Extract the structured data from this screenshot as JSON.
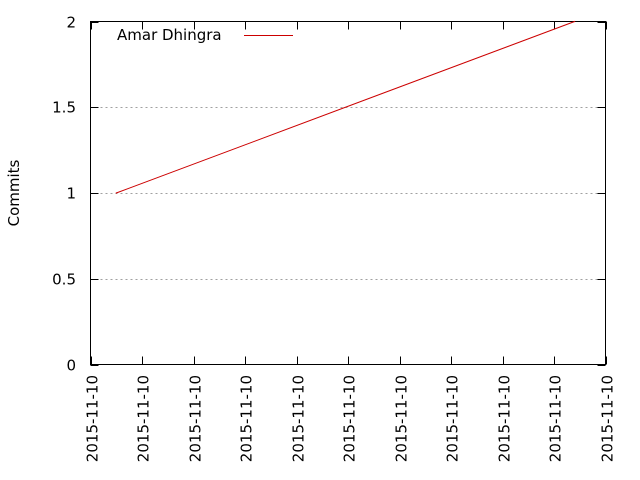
{
  "colors": {
    "series": "#cc0000",
    "grid": "#a0a0a0",
    "axis": "#000000"
  },
  "chart_data": {
    "type": "line",
    "title": "",
    "xlabel": "",
    "ylabel": "Commits",
    "ylim": [
      0,
      2
    ],
    "y_ticks": [
      0,
      0.5,
      1,
      1.5,
      2
    ],
    "y_tick_labels": [
      "0",
      "0.5",
      "1",
      "1.5",
      "2"
    ],
    "x_tick_labels": [
      "2015-11-10",
      "2015-11-10",
      "2015-11-10",
      "2015-11-10",
      "2015-11-10",
      "2015-11-10",
      "2015-11-10",
      "2015-11-10",
      "2015-11-10",
      "2015-11-10",
      "2015-11-10"
    ],
    "grid": "horizontal dotted",
    "legend_position": "top-left",
    "series": [
      {
        "name": "Amar Dhingra",
        "x_tick_positions": [
          0.5,
          9.4
        ],
        "values": [
          1,
          2
        ]
      }
    ]
  }
}
